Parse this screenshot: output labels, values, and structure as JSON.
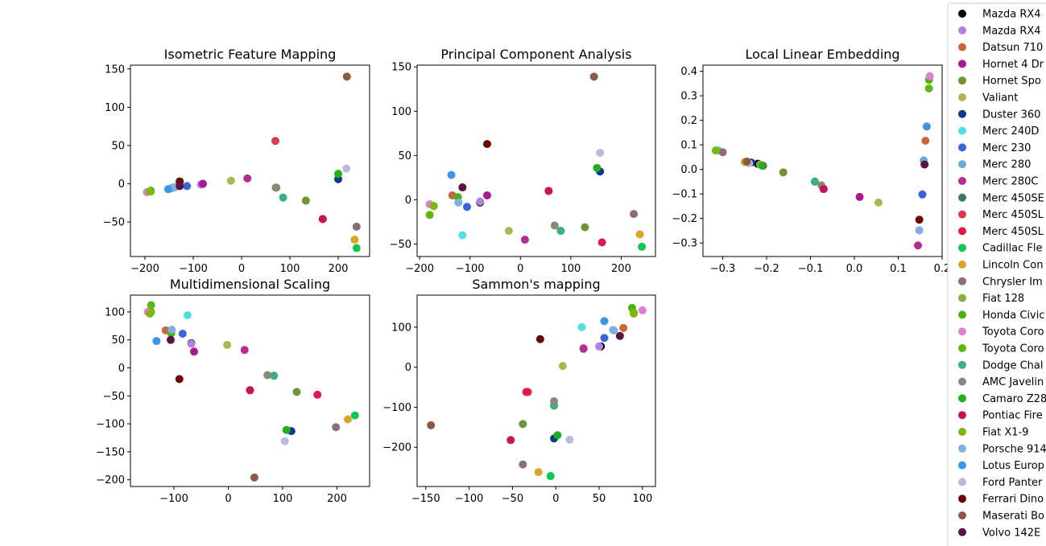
{
  "legend": {
    "location": "right",
    "entries": [
      {
        "label": "Mazda RX4",
        "color": "#000000"
      },
      {
        "label": "Mazda RX4",
        "color": "#b57fe0"
      },
      {
        "label": "Datsun 710",
        "color": "#c8673c"
      },
      {
        "label": "Hornet 4 Dr",
        "color": "#a81991"
      },
      {
        "label": "Hornet Spo",
        "color": "#709333"
      },
      {
        "label": "Valiant",
        "color": "#a8b852"
      },
      {
        "label": "Duster 360",
        "color": "#0d3a8a"
      },
      {
        "label": "Merc 240D",
        "color": "#4fdde6"
      },
      {
        "label": "Merc 230",
        "color": "#3c63d8"
      },
      {
        "label": "Merc 280",
        "color": "#6aaed8"
      },
      {
        "label": "Merc 280C",
        "color": "#b22d96"
      },
      {
        "label": "Merc 450SE",
        "color": "#348060"
      },
      {
        "label": "Merc 450SL",
        "color": "#dc3a4c"
      },
      {
        "label": "Merc 450SL",
        "color": "#e6164a"
      },
      {
        "label": "Cadillac Fle",
        "color": "#10c850"
      },
      {
        "label": "Lincoln Con",
        "color": "#d8a628"
      },
      {
        "label": "Chrysler Im",
        "color": "#8c6a80"
      },
      {
        "label": "Fiat 128",
        "color": "#88ae3c"
      },
      {
        "label": "Honda Civic",
        "color": "#4db00f"
      },
      {
        "label": "Toyota Coro",
        "color": "#e07fd0"
      },
      {
        "label": "Toyota Coro",
        "color": "#5bb80e"
      },
      {
        "label": "Dodge Chal",
        "color": "#3eb07e"
      },
      {
        "label": "AMC Javelin",
        "color": "#868a76"
      },
      {
        "label": "Camaro Z28",
        "color": "#1eb01e"
      },
      {
        "label": "Pontiac Fire",
        "color": "#c8125a"
      },
      {
        "label": "Fiat X1-9",
        "color": "#7db80c"
      },
      {
        "label": "Porsche 914",
        "color": "#80b0e0"
      },
      {
        "label": "Lotus Europ",
        "color": "#3c96e6"
      },
      {
        "label": "Ford Panter",
        "color": "#b8b8e0"
      },
      {
        "label": "Ferrari Dino",
        "color": "#6e0606"
      },
      {
        "label": "Maserati Bo",
        "color": "#8b5a40"
      },
      {
        "label": "Volvo 142E",
        "color": "#5a1440"
      }
    ]
  },
  "chart_data": [
    {
      "type": "scatter",
      "title": "Isometric Feature Mapping",
      "xlim": [
        -230,
        265
      ],
      "ylim": [
        -95,
        155
      ],
      "xticks": [
        -200,
        -100,
        0,
        100,
        200
      ],
      "yticks": [
        -50,
        0,
        50,
        100,
        150
      ],
      "tick_labels": {
        "x": [
          "−200",
          "−100",
          "0",
          "100",
          "200"
        ],
        "y": [
          "−50",
          "0",
          "50",
          "100",
          "150"
        ]
      },
      "points": [
        [
          -128,
          3,
          0
        ],
        [
          -84,
          -1,
          1
        ],
        [
          -146,
          -6,
          2
        ],
        [
          -80,
          0,
          3
        ],
        [
          133,
          -22,
          4
        ],
        [
          -22,
          4,
          5
        ],
        [
          200,
          6,
          6
        ],
        [
          -137,
          -4,
          7
        ],
        [
          -113,
          -3,
          8
        ],
        [
          -143,
          -5,
          9
        ],
        [
          12,
          7,
          10
        ],
        [
          71,
          -5,
          11
        ],
        [
          70,
          56,
          12
        ],
        [
          168,
          -46,
          13
        ],
        [
          238,
          -84,
          14
        ],
        [
          234,
          -73,
          15
        ],
        [
          238,
          -56,
          16
        ],
        [
          -190,
          -10,
          17
        ],
        [
          -188,
          -9,
          18
        ],
        [
          -196,
          -11,
          19
        ],
        [
          -188,
          -10,
          20
        ],
        [
          86,
          -18,
          21
        ],
        [
          72,
          -5,
          22
        ],
        [
          200,
          13,
          23
        ],
        [
          168,
          -46,
          24
        ],
        [
          -190,
          -10,
          25
        ],
        [
          -140,
          -5,
          26
        ],
        [
          -152,
          -7,
          27
        ],
        [
          217,
          20,
          28
        ],
        [
          -128,
          3,
          29
        ],
        [
          218,
          140,
          30
        ],
        [
          -128,
          -3,
          31
        ]
      ]
    },
    {
      "type": "scatter",
      "title": "Principal Component Analysis",
      "xlim": [
        -205,
        268
      ],
      "ylim": [
        -64,
        152
      ],
      "xticks": [
        -200,
        -100,
        0,
        100,
        200
      ],
      "yticks": [
        -50,
        0,
        50,
        100,
        150
      ],
      "tick_labels": {
        "x": [
          "−200",
          "−100",
          "0",
          "100",
          "200"
        ],
        "y": [
          "−50",
          "0",
          "50",
          "100",
          "150"
        ]
      },
      "points": [
        [
          -80,
          -3,
          0
        ],
        [
          -80,
          -2,
          1
        ],
        [
          -135,
          5,
          2
        ],
        [
          -66,
          5,
          3
        ],
        [
          128,
          -31,
          4
        ],
        [
          -23,
          -35,
          5
        ],
        [
          158,
          32,
          6
        ],
        [
          -115,
          -40,
          7
        ],
        [
          -106,
          -8,
          8
        ],
        [
          -123,
          -3,
          9
        ],
        [
          9,
          -45,
          10
        ],
        [
          80,
          -35,
          11
        ],
        [
          56,
          10,
          12
        ],
        [
          162,
          -48,
          13
        ],
        [
          241,
          -53,
          14
        ],
        [
          237,
          -39,
          15
        ],
        [
          225,
          -16,
          16
        ],
        [
          -172,
          -7,
          17
        ],
        [
          -124,
          3,
          18
        ],
        [
          -180,
          -5,
          19
        ],
        [
          -180,
          -17,
          20
        ],
        [
          80,
          -35,
          21
        ],
        [
          68,
          -29,
          22
        ],
        [
          152,
          36,
          23
        ],
        [
          56,
          10,
          24
        ],
        [
          -172,
          -7,
          25
        ],
        [
          -123,
          -3,
          26
        ],
        [
          -137,
          28,
          27
        ],
        [
          158,
          53,
          28
        ],
        [
          -66,
          63,
          29
        ],
        [
          146,
          139,
          30
        ],
        [
          -115,
          14,
          31
        ]
      ]
    },
    {
      "type": "scatter",
      "title": "Local Linear Embedding",
      "xlim": [
        -0.345,
        0.2
      ],
      "ylim": [
        -0.355,
        0.425
      ],
      "xticks": [
        -0.3,
        -0.2,
        -0.1,
        0.0,
        0.1,
        0.2
      ],
      "yticks": [
        -0.3,
        -0.2,
        -0.1,
        0.0,
        0.1,
        0.2,
        0.3,
        0.4
      ],
      "tick_labels": {
        "x": [
          "−0.3",
          "−0.2",
          "−0.1",
          "0.0",
          "0.1",
          "0.2"
        ],
        "y": [
          "−0.3",
          "−0.2",
          "−0.1",
          "0.0",
          "0.1",
          "0.2",
          "0.3",
          "0.4"
        ]
      },
      "points": [
        [
          -0.22,
          0.023,
          0
        ],
        [
          0.148,
          -0.248,
          1
        ],
        [
          0.162,
          0.117,
          2
        ],
        [
          0.012,
          -0.112,
          3
        ],
        [
          -0.162,
          -0.012,
          4
        ],
        [
          0.055,
          -0.135,
          5
        ],
        [
          -0.235,
          0.028,
          6
        ],
        [
          -0.31,
          0.078,
          7
        ],
        [
          0.155,
          -0.102,
          8
        ],
        [
          0.158,
          0.037,
          9
        ],
        [
          0.145,
          -0.31,
          10
        ],
        [
          -0.09,
          -0.05,
          11
        ],
        [
          -0.07,
          -0.08,
          12
        ],
        [
          -0.208,
          0.015,
          13
        ],
        [
          -0.248,
          0.03,
          14
        ],
        [
          -0.25,
          0.03,
          15
        ],
        [
          -0.3,
          0.07,
          16
        ],
        [
          -0.215,
          0.02,
          17
        ],
        [
          0.17,
          0.365,
          18
        ],
        [
          0.172,
          0.38,
          19
        ],
        [
          0.17,
          0.33,
          20
        ],
        [
          -0.09,
          -0.05,
          21
        ],
        [
          -0.075,
          -0.065,
          22
        ],
        [
          -0.21,
          0.015,
          23
        ],
        [
          -0.07,
          -0.08,
          24
        ],
        [
          -0.316,
          0.077,
          25
        ],
        [
          0.148,
          -0.248,
          26
        ],
        [
          0.165,
          0.175,
          27
        ],
        [
          -0.24,
          0.025,
          28
        ],
        [
          0.148,
          -0.205,
          29
        ],
        [
          -0.245,
          0.032,
          30
        ],
        [
          0.16,
          0.02,
          31
        ]
      ]
    },
    {
      "type": "scatter",
      "title": "Multidimensional Scaling",
      "xlim": [
        -180,
        260
      ],
      "ylim": [
        -212,
        130
      ],
      "xticks": [
        -100,
        0,
        100,
        200
      ],
      "yticks": [
        -200,
        -150,
        -100,
        -50,
        0,
        50,
        100
      ],
      "tick_labels": {
        "x": [
          "−100",
          "0",
          "100",
          "200"
        ],
        "y": [
          "−200",
          "−150",
          "−100",
          "−50",
          "0",
          "50",
          "100"
        ]
      },
      "points": [
        [
          -68,
          44,
          0
        ],
        [
          -68,
          43,
          1
        ],
        [
          -115,
          67,
          2
        ],
        [
          -63,
          29,
          3
        ],
        [
          126,
          -43,
          4
        ],
        [
          -2,
          41,
          5
        ],
        [
          116,
          -113,
          6
        ],
        [
          -75,
          94,
          7
        ],
        [
          -84,
          61,
          8
        ],
        [
          -104,
          68,
          9
        ],
        [
          30,
          32,
          10
        ],
        [
          84,
          -14,
          11
        ],
        [
          40,
          -40,
          12
        ],
        [
          164,
          -48,
          13
        ],
        [
          233,
          -85,
          14
        ],
        [
          220,
          -92,
          15
        ],
        [
          198,
          -106,
          16
        ],
        [
          -142,
          100,
          17
        ],
        [
          -105,
          62,
          18
        ],
        [
          -148,
          100,
          19
        ],
        [
          -142,
          112,
          20
        ],
        [
          84,
          -14,
          21
        ],
        [
          72,
          -13,
          22
        ],
        [
          107,
          -111,
          23
        ],
        [
          40,
          -40,
          24
        ],
        [
          -144,
          97,
          25
        ],
        [
          -104,
          68,
          26
        ],
        [
          -132,
          48,
          27
        ],
        [
          104,
          -131,
          28
        ],
        [
          -90,
          -20,
          29
        ],
        [
          48,
          -196,
          30
        ],
        [
          -106,
          50,
          31
        ]
      ]
    },
    {
      "type": "scatter",
      "title": "Sammon's mapping",
      "xlim": [
        -160,
        115
      ],
      "ylim": [
        -298,
        180
      ],
      "xticks": [
        -150,
        -100,
        -50,
        0,
        50,
        100
      ],
      "yticks": [
        -200,
        -100,
        0,
        100
      ],
      "tick_labels": {
        "x": [
          "−150",
          "−100",
          "−50",
          "0",
          "50",
          "100"
        ],
        "y": [
          "−200",
          "−100",
          "0",
          "100"
        ]
      },
      "points": [
        [
          52,
          52,
          0
        ],
        [
          50,
          52,
          1
        ],
        [
          78,
          98,
          2
        ],
        [
          32,
          47,
          3
        ],
        [
          -38,
          -142,
          4
        ],
        [
          8,
          3,
          5
        ],
        [
          -2,
          -178,
          6
        ],
        [
          30,
          100,
          7
        ],
        [
          56,
          73,
          8
        ],
        [
          67,
          92,
          9
        ],
        [
          32,
          46,
          10
        ],
        [
          -2,
          -96,
          11
        ],
        [
          -32,
          -62,
          12
        ],
        [
          -34,
          -62,
          13
        ],
        [
          -6,
          -272,
          14
        ],
        [
          -20,
          -262,
          15
        ],
        [
          -38,
          -243,
          16
        ],
        [
          90,
          135,
          17
        ],
        [
          88,
          148,
          18
        ],
        [
          100,
          142,
          19
        ],
        [
          90,
          136,
          20
        ],
        [
          -2,
          -96,
          21
        ],
        [
          -2,
          -85,
          22
        ],
        [
          2,
          -170,
          23
        ],
        [
          -52,
          -182,
          24
        ],
        [
          90,
          134,
          25
        ],
        [
          66,
          93,
          26
        ],
        [
          56,
          115,
          27
        ],
        [
          16,
          -181,
          28
        ],
        [
          -18,
          70,
          29
        ],
        [
          -144,
          -145,
          30
        ],
        [
          74,
          78,
          31
        ]
      ]
    }
  ]
}
